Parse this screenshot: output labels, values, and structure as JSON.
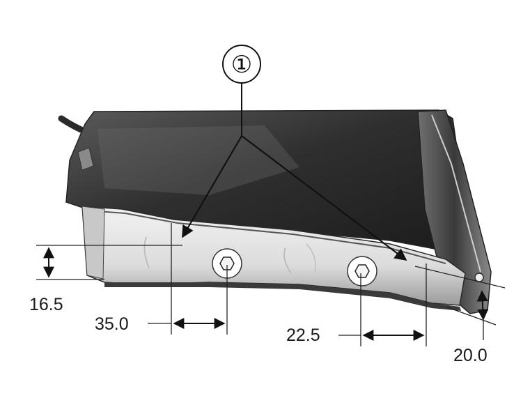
{
  "callout": {
    "label": "①"
  },
  "dimensions": {
    "height_left": "16.5",
    "offset_left": "35.0",
    "offset_right": "22.5",
    "height_right": "20.0"
  }
}
